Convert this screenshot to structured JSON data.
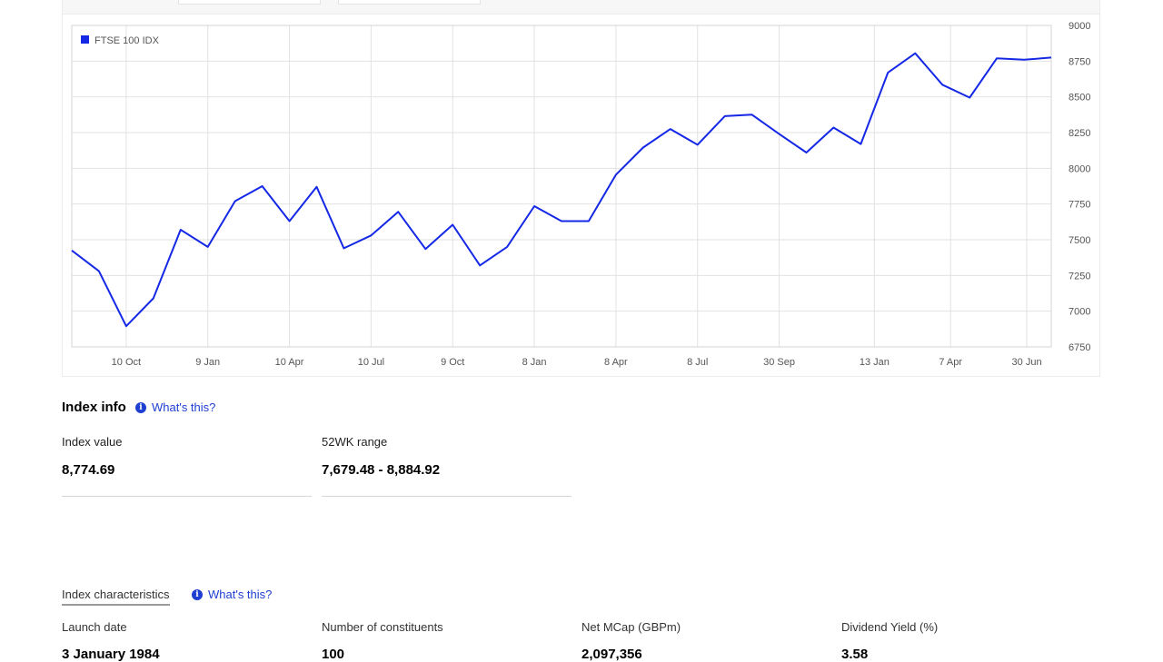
{
  "chart": {
    "legend_label": "FTSE 100 IDX",
    "line_color": "#1428e6"
  },
  "chart_data": {
    "type": "line",
    "title": "",
    "xlabel": "",
    "ylabel": "",
    "ylim": [
      6750,
      9000
    ],
    "y_ticks": [
      "9000",
      "8750",
      "8500",
      "8250",
      "8000",
      "7750",
      "7500",
      "7250",
      "7000",
      "6750"
    ],
    "x_tick_labels": [
      "10 Oct",
      "9 Jan",
      "10 Apr",
      "10 Jul",
      "9 Oct",
      "8 Jan",
      "8 Apr",
      "8 Jul",
      "30 Sep",
      "13 Jan",
      "7 Apr",
      "30 Jun"
    ],
    "x_tick_indices": [
      2,
      5,
      8,
      11,
      14,
      17,
      20,
      23,
      26,
      29.5,
      32.3,
      35.1
    ],
    "grid": true,
    "legend_position": "top-left",
    "series": [
      {
        "name": "FTSE 100 IDX",
        "values": [
          7425,
          7280,
          6895,
          7090,
          7570,
          7450,
          7770,
          7875,
          7630,
          7870,
          7440,
          7530,
          7695,
          7435,
          7605,
          7320,
          7450,
          7735,
          7630,
          7630,
          7955,
          8145,
          8275,
          8165,
          8365,
          8375,
          8240,
          8110,
          8285,
          8170,
          8670,
          8805,
          8585,
          8495,
          8770,
          8760,
          8775
        ]
      }
    ]
  },
  "index_info": {
    "title": "Index info",
    "whats_this": "What's this?",
    "index_value_label": "Index value",
    "index_value": "8,774.69",
    "range_label": "52WK range",
    "range_value": "7,679.48 - 8,884.92"
  },
  "characteristics": {
    "tab_label": "Index characteristics",
    "whats_this": "What's this?",
    "items": [
      {
        "label": "Launch date",
        "value": "3 January 1984"
      },
      {
        "label": "Number of constituents",
        "value": "100"
      },
      {
        "label": "Net MCap (GBPm)",
        "value": "2,097,356"
      },
      {
        "label": "Dividend Yield (%)",
        "value": "3.58"
      }
    ]
  }
}
